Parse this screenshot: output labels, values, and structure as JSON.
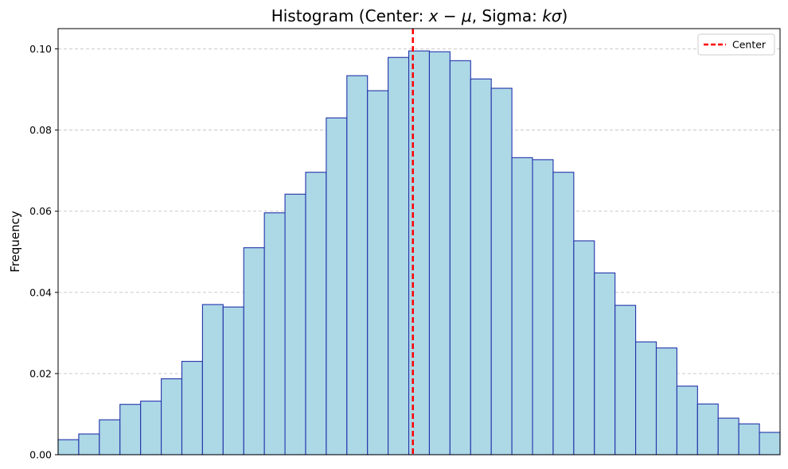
{
  "chart_data": {
    "type": "bar",
    "title_parts": [
      "Histogram (Center: ",
      "x − μ",
      ", Sigma: ",
      "kσ",
      ")"
    ],
    "xlabel": "",
    "ylabel": "Frequency",
    "ylim": [
      0,
      0.105
    ],
    "y_ticks": [
      0.0,
      0.02,
      0.04,
      0.06,
      0.08,
      0.1
    ],
    "y_tick_labels": [
      "0.00",
      "0.02",
      "0.04",
      "0.06",
      "0.08",
      "0.10"
    ],
    "x_ticks_shown": false,
    "grid": {
      "y": true,
      "x": false,
      "style": "dashed"
    },
    "bar_fill": "#add8e6",
    "bar_edge": "#2233aa",
    "values": [
      0.0037,
      0.0051,
      0.0086,
      0.0124,
      0.0132,
      0.0187,
      0.023,
      0.037,
      0.0364,
      0.051,
      0.0596,
      0.0642,
      0.0696,
      0.083,
      0.0934,
      0.0897,
      0.0979,
      0.0995,
      0.0993,
      0.0971,
      0.0926,
      0.0903,
      0.0732,
      0.0727,
      0.0696,
      0.0527,
      0.0448,
      0.0368,
      0.0278,
      0.0263,
      0.0169,
      0.0125,
      0.009,
      0.0076,
      0.0055
    ],
    "center_line": {
      "label": "Center",
      "position": 17.2,
      "color": "#ff0000",
      "style": "dashed"
    },
    "legend": {
      "entries": [
        "Center"
      ],
      "placement": "top-right"
    }
  }
}
